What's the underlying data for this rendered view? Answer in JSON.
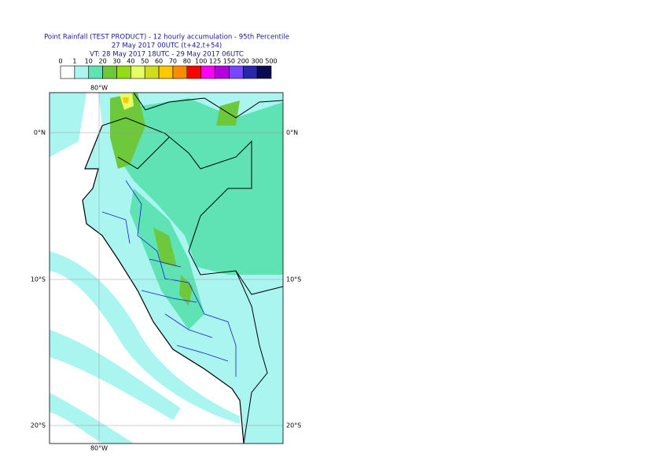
{
  "header": {
    "title": "Point Rainfall (TEST PRODUCT) - 12 hourly accumulation - 95th Percentile",
    "base_time": "27 May 2017 00UTC (t+42,t+54)",
    "valid_time": "VT: 28 May 2017 18UTC - 29 May 2017 06UTC"
  },
  "legend": {
    "labels": [
      "0",
      "1",
      "10",
      "20",
      "30",
      "40",
      "50",
      "60",
      "70",
      "80",
      "100",
      "125",
      "150",
      "200",
      "300",
      "500"
    ],
    "colors": [
      "#ffffff",
      "#aaf5f0",
      "#5fe3b4",
      "#6ec83c",
      "#96dc14",
      "#e6ff64",
      "#d2dc1e",
      "#ffc800",
      "#ff8c00",
      "#ff0000",
      "#ff00ff",
      "#b400dc",
      "#7846ff",
      "#2828aa",
      "#0a0a50"
    ]
  },
  "map": {
    "lon_top": "80°W",
    "lon_bottom": "80°W",
    "lat_left": [
      "0°N",
      "10°S",
      "20°S"
    ],
    "lat_right": [
      "0°N",
      "10°S",
      "20°S"
    ]
  }
}
